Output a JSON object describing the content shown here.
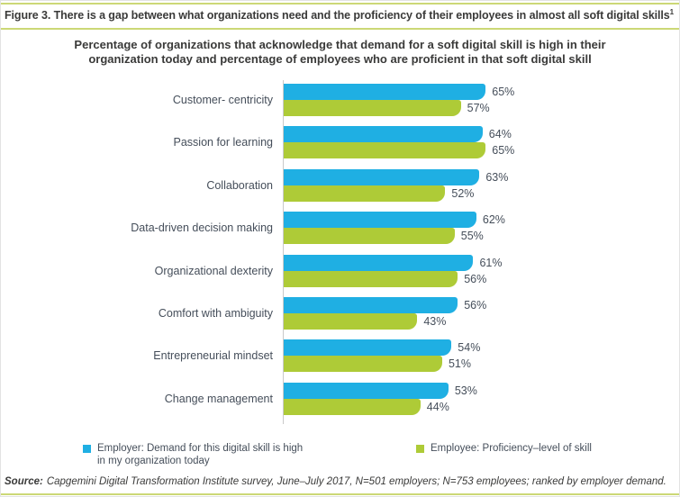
{
  "figure": {
    "title": "Figure 3. There is a gap between what organizations need and the proficiency of their employees in almost all soft digital skills",
    "title_superscript": "1",
    "subtitle_lines": [
      "Percentage of organizations that acknowledge that demand for a soft digital skill is high in their",
      "organization today and percentage of employees who are proficient in that soft digital skill"
    ]
  },
  "chart_data": {
    "type": "bar",
    "orientation": "horizontal",
    "title": "Percentage of organizations that acknowledge that demand for a soft digital skill is high in their organization today and percentage of employees who are proficient in that soft digital skill",
    "categories": [
      "Customer- centricity",
      "Passion for learning",
      "Collaboration",
      "Data-driven decision making",
      "Organizational dexterity",
      "Comfort with ambiguity",
      "Entrepreneurial mindset",
      "Change management"
    ],
    "series": [
      {
        "name": "Employer: Demand for this digital skill is high in my organization today",
        "color": "#1fafe3",
        "values": [
          65,
          64,
          63,
          62,
          61,
          56,
          54,
          53
        ]
      },
      {
        "name": "Employee: Proficiency–level of skill",
        "color": "#aecb37",
        "values": [
          57,
          65,
          52,
          55,
          56,
          43,
          51,
          44
        ]
      }
    ],
    "value_suffix": "%",
    "xlim": [
      0,
      70
    ],
    "grid": false,
    "legend_position": "bottom",
    "data_labels": true
  },
  "source": {
    "prefix": "Source:",
    "text": "Capgemini Digital Transformation Institute survey, June–July 2017, N=501 employers; N=753 employees; ranked by employer demand."
  },
  "colors": {
    "employer_blue": "#1fafe3",
    "employee_green": "#aecb37",
    "rule_green": "#ccd876",
    "axis_gray": "#c9c9c9",
    "title_text": "#3a3a39",
    "label_text": "#454e5a"
  }
}
